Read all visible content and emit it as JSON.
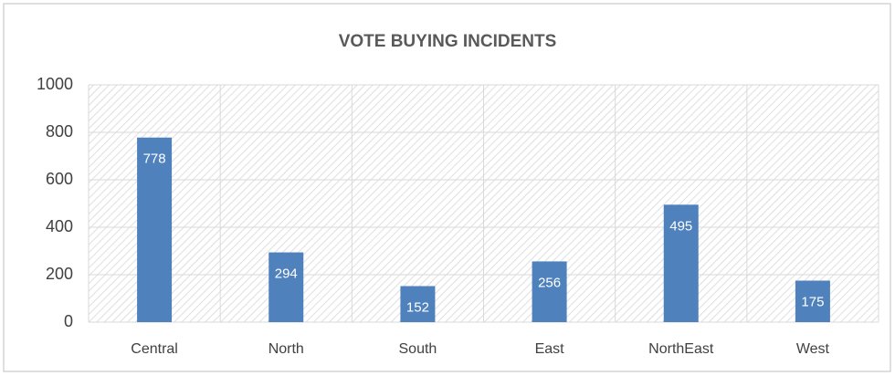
{
  "chart_data": {
    "type": "bar",
    "title": "VOTE BUYING INCIDENTS",
    "categories": [
      "Central",
      "North",
      "South",
      "East",
      "NorthEast",
      "West"
    ],
    "values": [
      778,
      294,
      152,
      256,
      495,
      175
    ],
    "color": "#4f81bd",
    "ylim": [
      0,
      1000
    ],
    "yticks": [
      0,
      200,
      400,
      600,
      800,
      1000
    ],
    "grid": true
  }
}
